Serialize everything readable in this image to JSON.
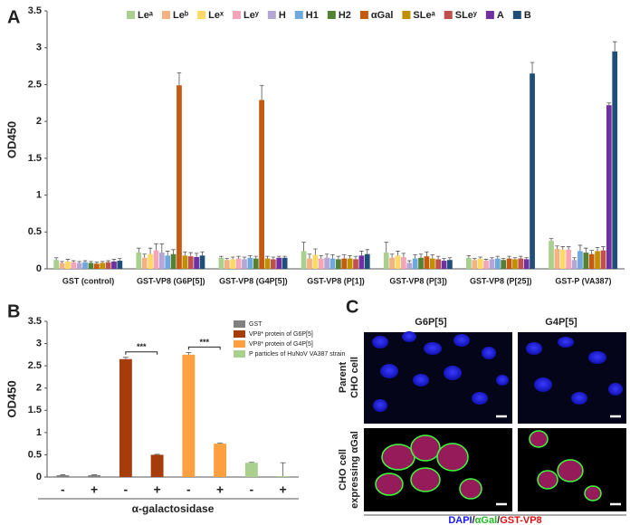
{
  "chart_data": [
    {
      "type": "bar",
      "panel_label": "A",
      "ylabel": "OD450",
      "categories": [
        "GST (control)",
        "GST-VP8 (G6P[5])",
        "GST-VP8 (G4P[5])",
        "GST-VP8 (P[1])",
        "GST-VP8 (P[3])",
        "GST-VP8 (P[25])",
        "GST-P (VA387)"
      ],
      "ylim": [
        0,
        3.5
      ],
      "yticks": [
        0,
        0.5,
        1,
        1.5,
        2,
        2.5,
        3,
        3.5
      ],
      "series": [
        {
          "name": "Leᵃ",
          "color": "#a9d08e",
          "values": [
            0.12,
            0.22,
            0.15,
            0.24,
            0.22,
            0.15,
            0.38
          ],
          "errors": [
            0.03,
            0.06,
            0.02,
            0.12,
            0.14,
            0.03,
            0.03
          ]
        },
        {
          "name": "Leᵇ",
          "color": "#f4b183",
          "values": [
            0.08,
            0.15,
            0.12,
            0.14,
            0.15,
            0.12,
            0.27
          ],
          "errors": [
            0.02,
            0.05,
            0.02,
            0.06,
            0.05,
            0.02,
            0.04
          ]
        },
        {
          "name": "Leˣ",
          "color": "#ffd966",
          "values": [
            0.1,
            0.2,
            0.13,
            0.19,
            0.18,
            0.14,
            0.26
          ],
          "errors": [
            0.03,
            0.08,
            0.03,
            0.08,
            0.06,
            0.02,
            0.04
          ]
        },
        {
          "name": "Leʸ",
          "color": "#f4a6b8",
          "values": [
            0.09,
            0.25,
            0.14,
            0.14,
            0.16,
            0.11,
            0.26
          ],
          "errors": [
            0.02,
            0.09,
            0.03,
            0.04,
            0.05,
            0.02,
            0.04
          ]
        },
        {
          "name": "H",
          "color": "#b4a7d6",
          "values": [
            0.08,
            0.22,
            0.13,
            0.15,
            0.08,
            0.13,
            0.12
          ],
          "errors": [
            0.02,
            0.12,
            0.03,
            0.05,
            0.03,
            0.02,
            0.03
          ]
        },
        {
          "name": "H1",
          "color": "#6fa8dc",
          "values": [
            0.09,
            0.18,
            0.15,
            0.14,
            0.14,
            0.14,
            0.24
          ],
          "errors": [
            0.02,
            0.06,
            0.03,
            0.05,
            0.05,
            0.03,
            0.08
          ]
        },
        {
          "name": "H2",
          "color": "#548235",
          "values": [
            0.08,
            0.2,
            0.14,
            0.13,
            0.15,
            0.12,
            0.22
          ],
          "errors": [
            0.02,
            0.06,
            0.03,
            0.04,
            0.05,
            0.02,
            0.06
          ]
        },
        {
          "name": "αGal",
          "color": "#c55a11",
          "values": [
            0.07,
            2.49,
            2.29,
            0.14,
            0.17,
            0.14,
            0.2
          ],
          "errors": [
            0.02,
            0.17,
            0.2,
            0.05,
            0.06,
            0.03,
            0.05
          ]
        },
        {
          "name": "SLeᵃ",
          "color": "#bf9000",
          "values": [
            0.08,
            0.18,
            0.14,
            0.14,
            0.14,
            0.13,
            0.24
          ],
          "errors": [
            0.02,
            0.05,
            0.03,
            0.04,
            0.05,
            0.02,
            0.05
          ]
        },
        {
          "name": "SLeʸ",
          "color": "#c0504d",
          "values": [
            0.09,
            0.17,
            0.13,
            0.13,
            0.13,
            0.14,
            0.25
          ],
          "errors": [
            0.02,
            0.05,
            0.03,
            0.04,
            0.04,
            0.03,
            0.05
          ]
        },
        {
          "name": "A",
          "color": "#7030a0",
          "values": [
            0.1,
            0.16,
            0.15,
            0.18,
            0.11,
            0.13,
            2.22
          ],
          "errors": [
            0.03,
            0.05,
            0.02,
            0.06,
            0.03,
            0.02,
            0.03
          ]
        },
        {
          "name": "B",
          "color": "#1f4e79",
          "values": [
            0.11,
            0.18,
            0.15,
            0.2,
            0.12,
            2.65,
            2.95
          ],
          "errors": [
            0.03,
            0.05,
            0.02,
            0.06,
            0.03,
            0.15,
            0.13
          ]
        }
      ]
    },
    {
      "type": "bar",
      "panel_label": "B",
      "ylabel": "OD450",
      "xlabel": "α-galactosidase",
      "categories": [
        "-",
        "+",
        "-",
        "+",
        "-",
        "+",
        "-",
        "+"
      ],
      "values": [
        0.04,
        0.04,
        2.65,
        0.5,
        2.75,
        0.75,
        0.32,
        0.02
      ],
      "errors": [
        0.01,
        0.01,
        0.04,
        0.01,
        0.05,
        0.01,
        0.01,
        0.3
      ],
      "colors": [
        "#808080",
        "#808080",
        "#a63c0a",
        "#a63c0a",
        "#ffa040",
        "#ffa040",
        "#a9d08e",
        "#a9d08e"
      ],
      "legend": [
        {
          "name": "GST",
          "color": "#808080"
        },
        {
          "name": "VP8* protein of G6P[5]",
          "color": "#a63c0a"
        },
        {
          "name": "VP8* protein of G4P[5]",
          "color": "#ffa040"
        },
        {
          "name": "P particles of HuNoV VA387 strain",
          "color": "#a9d08e"
        }
      ],
      "annotations": [
        {
          "text": "***",
          "from": 2,
          "to": 3
        },
        {
          "text": "***",
          "from": 4,
          "to": 5
        }
      ],
      "ylim": [
        0,
        3.5
      ],
      "yticks": [
        0,
        0.5,
        1,
        1.5,
        2,
        2.5,
        3,
        3.5
      ]
    }
  ],
  "panel_c": {
    "panel_label": "C",
    "columns": [
      "G6P[5]",
      "G4P[5]"
    ],
    "rows": [
      [
        "Parent",
        "CHO cell"
      ],
      [
        "CHO cell",
        "expressing αGal"
      ]
    ],
    "caption": [
      "DAPI",
      "/",
      "αGal",
      "/",
      "GST-VP8"
    ]
  }
}
